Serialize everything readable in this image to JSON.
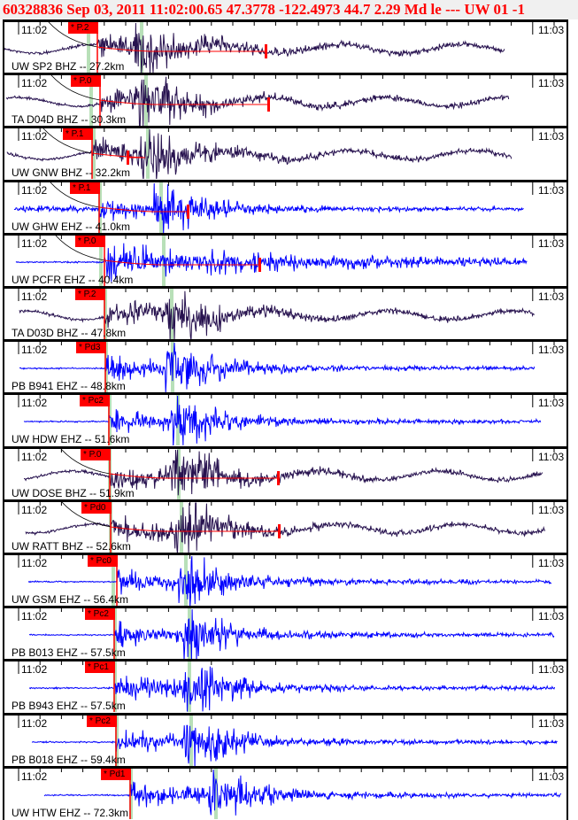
{
  "header": {
    "title": "60328836 Sep 03, 2011 11:02:00.65    47.3778 -122.4973 44.7 2.29 Md le --- UW 01   -1"
  },
  "colors": {
    "title": "#ff0000",
    "pick": "#ff0000",
    "bhz_trace": "#27124f",
    "ehz_trace": "#0000ff",
    "s_marker": "#b8e0b8"
  },
  "time_labels": {
    "start": "11:02",
    "end": "11:03"
  },
  "channels": [
    {
      "label": "UW SP2 BHZ -- 27.2km",
      "pick": "* P.2"
    },
    {
      "label": "TA D04D BHZ -- 30.3km",
      "pick": "* P.0"
    },
    {
      "label": "UW GNW BHZ -- 32.2km",
      "pick": "* P.1"
    },
    {
      "label": "UW GHW EHZ -- 41.0km",
      "pick": "* P.1"
    },
    {
      "label": "UW PCFR EHZ -- 40.4km",
      "pick": "* P.0"
    },
    {
      "label": "TA D03D BHZ -- 47.8km",
      "pick": "* P.2"
    },
    {
      "label": "PB B941 EHZ -- 48.8km",
      "pick": "* Pd3"
    },
    {
      "label": "UW HDW EHZ -- 51.6km",
      "pick": "* Pc2"
    },
    {
      "label": "UW DOSE BHZ -- 51.9km",
      "pick": "* P.0"
    },
    {
      "label": "UW RATT BHZ -- 52.6km",
      "pick": "* Pd0"
    },
    {
      "label": "UW GSM EHZ -- 56.4km",
      "pick": "* Pc0"
    },
    {
      "label": "PB B013 EHZ -- 57.5km",
      "pick": "* Pc2"
    },
    {
      "label": "PB B943 EHZ -- 57.5km",
      "pick": "* Pc1"
    },
    {
      "label": "PB B018 EHZ -- 59.4km",
      "pick": "* Pc2"
    },
    {
      "label": "UW HTW EHZ -- 72.3km",
      "pick": "* Pd1"
    }
  ]
}
